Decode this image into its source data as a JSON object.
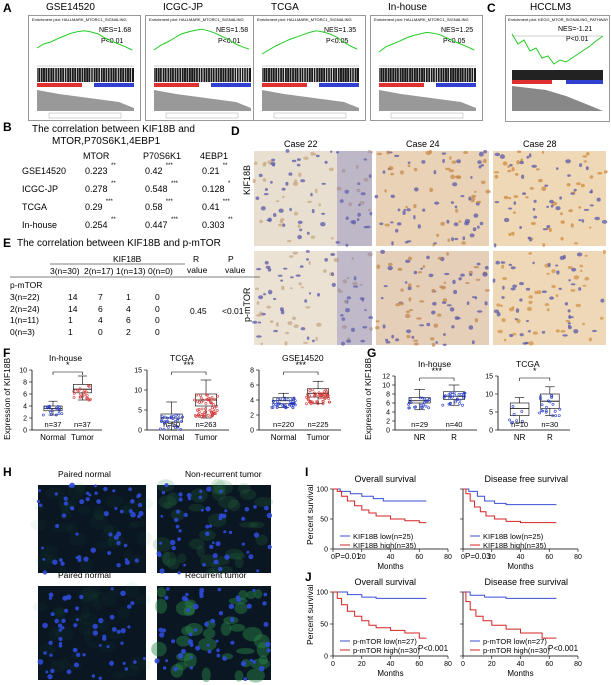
{
  "panel_letters": [
    "A",
    "B",
    "C",
    "D",
    "E",
    "F",
    "G",
    "H",
    "I",
    "J"
  ],
  "panelA": {
    "titles": [
      "GSE14520",
      "ICGC-JP",
      "TCGA",
      "In-house"
    ],
    "subtitles": [
      "Enrichment plot: HALLMARK_MTORC1_SIGNALING",
      "Enrichment plot: HALLMARK_MTORC1_SIGNALING",
      "Enrichment plot: HALLMARK_MTORC1_SIGNALING",
      "Enrichment plot: HALLMARK_MTORC1_SIGNALING"
    ],
    "nes": [
      "NES=1.68",
      "NES=1.58",
      "NES=1.35",
      "NES=1.25"
    ],
    "pvals": [
      "P<0.01",
      "P<0.01",
      "P<0.05",
      "P<0.05"
    ],
    "ylabel_es": "Enrichment score (ES)",
    "ylabel_rank": "Ranked list metric",
    "xlabel": "Rank in Ordered Dataset",
    "legend": "Enrichment profile — Hits — Ranking metric scores"
  },
  "panelC": {
    "title": "HCCLM3",
    "subtitle": "Enrichment plot: KEGG_MTOR_SIGNALING_PATHWAY",
    "nes": "NES=-1.21",
    "pval": "P<0.01"
  },
  "panelB": {
    "title_line1": "The correlation between KIF18B and",
    "title_line2": "MTOR,P70S6K1,4EBP1",
    "columns": [
      "MTOR",
      "P70S6K1",
      "4EBP1"
    ],
    "rows": [
      {
        "name": "GSE14520",
        "values": [
          "0.223",
          "0.42",
          "0.21"
        ],
        "stars": [
          "**",
          "***",
          "**"
        ]
      },
      {
        "name": "ICGC-JP",
        "values": [
          "0.278",
          "0.548",
          "0.128"
        ],
        "stars": [
          "**",
          "***",
          "*"
        ]
      },
      {
        "name": "TCGA",
        "values": [
          "0.29",
          "0.58",
          "0.41"
        ],
        "stars": [
          "***",
          "***",
          "***"
        ]
      },
      {
        "name": "In-house",
        "values": [
          "0.254",
          "0.447",
          "0.303"
        ],
        "stars": [
          "**",
          "***",
          "**"
        ]
      }
    ]
  },
  "panelD": {
    "cases": [
      "Case 22",
      "Case 24",
      "Case 28"
    ],
    "rows": [
      "KIF18B",
      "p-mTOR"
    ]
  },
  "panelE": {
    "title": "The correlation between KIF18B and p-mTOR",
    "header": "KIF18B",
    "subheaders": [
      "3(n=30)",
      "2(n=17)",
      "1(n=13)",
      "0(n=0)"
    ],
    "r_label": "R",
    "r_label2": "value",
    "p_label": "P",
    "p_label2": "value",
    "row_header": "p-mTOR",
    "rows": [
      {
        "name": "3(n=22)",
        "values": [
          "14",
          "7",
          "1",
          "0"
        ]
      },
      {
        "name": "2(n=24)",
        "values": [
          "14",
          "6",
          "4",
          "0"
        ]
      },
      {
        "name": "1(n=11)",
        "values": [
          "1",
          "4",
          "6",
          "0"
        ]
      },
      {
        "name": "0(n=3)",
        "values": [
          "1",
          "0",
          "2",
          "0"
        ]
      }
    ],
    "r_value": "0.45",
    "p_value": "<0.01"
  },
  "panelF": {
    "ylabel": "Expression of KIF18B",
    "plots": [
      {
        "title": "In-house",
        "sig": "*",
        "groups": [
          "Normal",
          "Tumor"
        ],
        "n": [
          "n=37",
          "n=37"
        ],
        "yticks": [
          "0",
          "2",
          "4",
          "6",
          "8",
          "10"
        ]
      },
      {
        "title": "TCGA",
        "sig": "***",
        "groups": [
          "Normal",
          "Tumor"
        ],
        "n": [
          "n=50",
          "n=263"
        ],
        "yticks": [
          "0",
          "5",
          "10",
          "15"
        ]
      },
      {
        "title": "GSE14520",
        "sig": "***",
        "groups": [
          "Normal",
          "Tumor"
        ],
        "n": [
          "n=220",
          "n=225"
        ],
        "yticks": [
          "0",
          "2",
          "4",
          "6",
          "8"
        ]
      }
    ]
  },
  "panelG": {
    "ylabel": "Expression of KIF18B",
    "plots": [
      {
        "title": "In-house",
        "sig": "***",
        "groups": [
          "NR",
          "R"
        ],
        "n": [
          "n=29",
          "n=40"
        ],
        "yticks": [
          "0",
          "2",
          "4",
          "6",
          "8",
          "10",
          "12"
        ]
      },
      {
        "title": "TCGA",
        "sig": "*",
        "groups": [
          "NR",
          "R"
        ],
        "n": [
          "n=10",
          "n=30"
        ],
        "yticks": [
          "0",
          "5",
          "10",
          "15"
        ]
      }
    ]
  },
  "panelH": {
    "labels": [
      "Paired normal",
      "Non-recurrent tumor",
      "Paired normal",
      "Recurrent tumor"
    ]
  },
  "panelI": {
    "titles": [
      "Overall survival",
      "Disease free survival"
    ],
    "ylabel": "Percent survival",
    "xlabel": "Months",
    "legend_low": "KIF18B low(n=25)",
    "legend_high": "KIF18B high(n=35)",
    "pvals": [
      "P=0.01",
      "P=0.03"
    ],
    "yticks": [
      "0",
      "50",
      "100"
    ],
    "xticks": [
      "0",
      "20",
      "40",
      "60",
      "80"
    ]
  },
  "panelJ": {
    "titles": [
      "Overall survival",
      "Disease free survival"
    ],
    "ylabel": "Percent survival",
    "xlabel": "Months",
    "legend_low": "p-mTOR low(n=27)",
    "legend_high": "p-mTOR high(n=30)",
    "pvals": [
      "P<0.001",
      "P<0.001"
    ],
    "yticks": [
      "0",
      "50",
      "100"
    ],
    "xticks": [
      "0",
      "20",
      "40",
      "60",
      "80"
    ]
  },
  "colors": {
    "low": "#3a4fd6",
    "high": "#d42424",
    "gsea_line": "#22cc22",
    "tumor_box": "#d43b3b",
    "normal_box": "#2a3fc9"
  }
}
